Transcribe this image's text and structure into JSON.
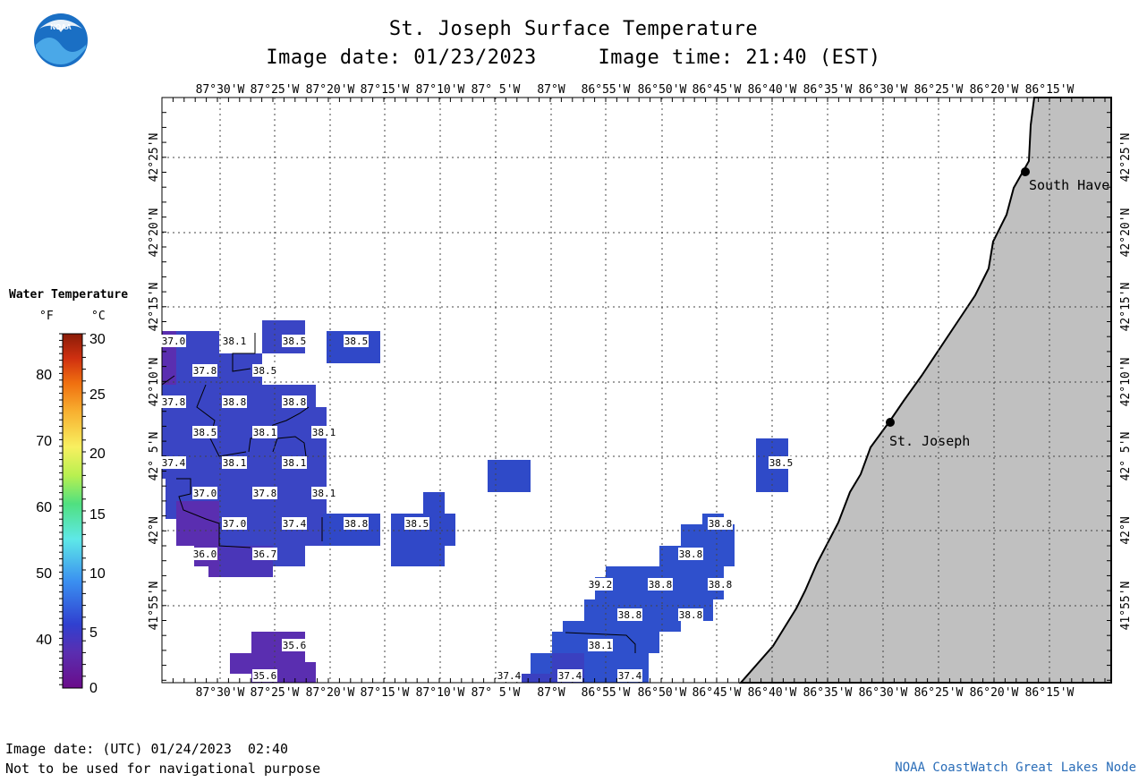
{
  "header": {
    "title": "St. Joseph Surface Temperature",
    "subtitle": "Image date: 01/23/2023     Image time: 21:40 (EST)"
  },
  "logo": {
    "text": "NOAA"
  },
  "legend": {
    "title": "Water Temperature",
    "unit_f": "°F",
    "unit_c": "°C",
    "f_ticks": [
      "80",
      "70",
      "60",
      "50",
      "40"
    ],
    "c_ticks": [
      "30",
      "25",
      "20",
      "15",
      "10",
      "5",
      "0"
    ]
  },
  "map": {
    "lon_labels": [
      "87°30'W",
      "87°25'W",
      "87°20'W",
      "87°15'W",
      "87°10'W",
      "87° 5'W",
      "87°W",
      "86°55'W",
      "86°50'W",
      "86°45'W",
      "86°40'W",
      "86°35'W",
      "86°30'W",
      "86°25'W",
      "86°20'W",
      "86°15'W"
    ],
    "lat_labels": [
      "42°25'N",
      "42°20'N",
      "42°15'N",
      "42°10'N",
      "42° 5'N",
      "42°N",
      "41°55'N"
    ],
    "places": [
      "South Have",
      "St. Joseph"
    ],
    "temperature_labels": [
      "37.0",
      "38.1",
      "38.5",
      "38.5",
      "37.8",
      "38.5",
      "37.8",
      "38.8",
      "38.8",
      "38.5",
      "38.1",
      "38.1",
      "37.4",
      "38.1",
      "38.1",
      "37.0",
      "37.8",
      "38.1",
      "37.0",
      "37.4",
      "38.8",
      "38.5",
      "36.0",
      "36.7",
      "35.6",
      "35.6",
      "38.5",
      "38.8",
      "38.8",
      "39.2",
      "38.8",
      "38.8",
      "38.8",
      "38.8",
      "38.1",
      "37.4",
      "37.4",
      "37.4"
    ],
    "colors": {
      "land": "#c0c0c0",
      "water_warm": "#2a4fc8",
      "water_cool": "#5a32b4",
      "grid": "#000000"
    }
  },
  "footer": {
    "utc_date": "Image date: (UTC) 01/24/2023  02:40",
    "disclaimer": "Not to be used for navigational purpose",
    "credit": "NOAA CoastWatch Great Lakes Node"
  }
}
